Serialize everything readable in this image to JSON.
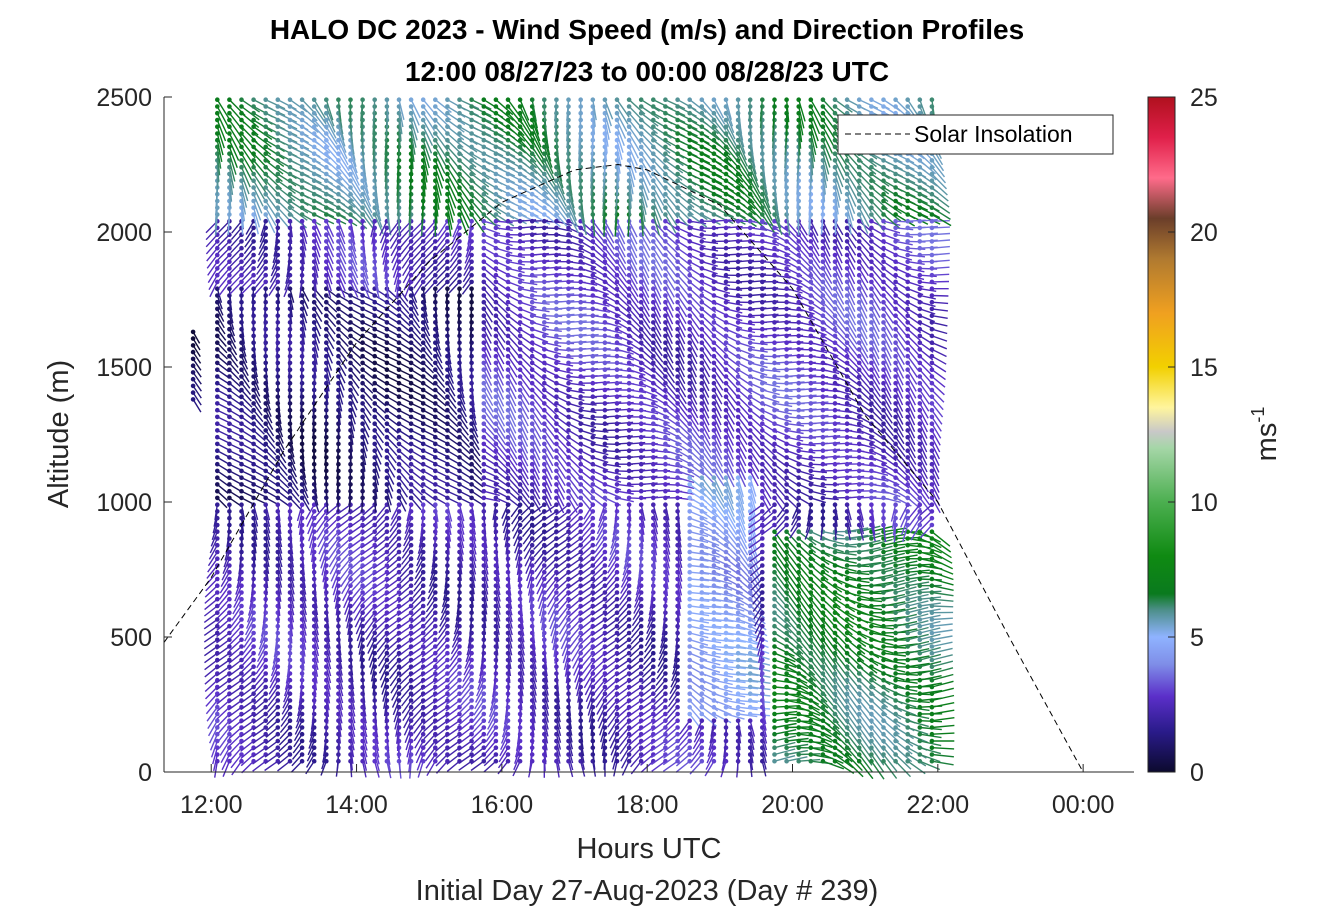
{
  "chart_data": {
    "type": "wind-barb-profile",
    "title_line1": "HALO DC 2023 - Wind Speed (m/s) and Direction Profiles",
    "title_line2": "12:00 08/27/23 to 00:00 08/28/23  UTC",
    "xlabel": "Hours UTC",
    "ylabel": "Altitude (m)",
    "subtitle": "Initial Day 27-Aug-2023 (Day # 239)",
    "x_tick_labels": [
      "12:00",
      "14:00",
      "16:00",
      "18:00",
      "20:00",
      "22:00",
      "00:00"
    ],
    "x_tick_hours": [
      12,
      14,
      16,
      18,
      20,
      22,
      24
    ],
    "xlim_hours": [
      11.35,
      24.7
    ],
    "y_ticks": [
      0,
      500,
      1000,
      1500,
      2000,
      2500
    ],
    "y_tick_labels": [
      "0",
      "500",
      "1000",
      "1500",
      "2000",
      "2500"
    ],
    "ylim": [
      0,
      2500
    ],
    "profile_start_hour": 11.75,
    "profile_end_hour": 22.0,
    "profile_step_hours": 0.1667,
    "colorbar": {
      "label_base": "ms",
      "label_exp": "-1",
      "ticks": [
        0,
        5,
        10,
        15,
        20,
        25
      ],
      "tick_labels": [
        "0",
        "5",
        "10",
        "15",
        "20",
        "25"
      ],
      "range": [
        0,
        25
      ],
      "stops": [
        {
          "v": 0,
          "c": "#0c0a2e"
        },
        {
          "v": 1.5,
          "c": "#2a1b8a"
        },
        {
          "v": 2.8,
          "c": "#5b2fc9"
        },
        {
          "v": 4.0,
          "c": "#7f8ee8"
        },
        {
          "v": 5.0,
          "c": "#8fb3ff"
        },
        {
          "v": 6.0,
          "c": "#4d8f8a"
        },
        {
          "v": 6.6,
          "c": "#0a7a1e"
        },
        {
          "v": 8.0,
          "c": "#0f8a12"
        },
        {
          "v": 10.0,
          "c": "#4caf50"
        },
        {
          "v": 12.0,
          "c": "#a5d6a7"
        },
        {
          "v": 12.6,
          "c": "#c8c8c8"
        },
        {
          "v": 13.5,
          "c": "#fff59d"
        },
        {
          "v": 15.0,
          "c": "#f2d000"
        },
        {
          "v": 17.0,
          "c": "#f0a020"
        },
        {
          "v": 19.0,
          "c": "#b07a30"
        },
        {
          "v": 20.5,
          "c": "#6b3e2a"
        },
        {
          "v": 22.0,
          "c": "#ff6b8a"
        },
        {
          "v": 23.5,
          "c": "#e0204a"
        },
        {
          "v": 25.0,
          "c": "#b0101e"
        }
      ]
    },
    "legend": {
      "label": "Solar Insolation",
      "placement": "top-right"
    },
    "solar_insolation_curve": {
      "hours": [
        11.35,
        12.0,
        13.0,
        14.0,
        15.0,
        16.0,
        17.0,
        17.6,
        18.0,
        19.0,
        20.0,
        21.0,
        22.0,
        23.0,
        24.0,
        24.7
      ],
      "altitude_m": [
        480,
        720,
        1190,
        1590,
        1890,
        2110,
        2230,
        2250,
        2230,
        2100,
        1790,
        1320,
        1000,
        490,
        0,
        0
      ]
    },
    "regimes": [
      {
        "t0": 11.75,
        "t1": 12.2,
        "z0": 1350,
        "z1": 1650,
        "speed": 0.6,
        "dir": 270
      },
      {
        "t0": 12.0,
        "t1": 15.6,
        "z0": 1000,
        "z1": 1800,
        "speed": 1.2,
        "dir": 300
      },
      {
        "t0": 12.0,
        "t1": 22.0,
        "z0": 0,
        "z1": 1000,
        "speed": 2.4,
        "dir": 250
      },
      {
        "t0": 15.6,
        "t1": 22.0,
        "z0": 1000,
        "z1": 2050,
        "speed": 2.8,
        "dir": 330
      },
      {
        "t0": 12.0,
        "t1": 22.0,
        "z0": 2050,
        "z1": 2500,
        "speed": 6.0,
        "dir": 300
      },
      {
        "t0": 19.6,
        "t1": 22.0,
        "z0": 0,
        "z1": 900,
        "speed": 6.5,
        "dir": 340
      },
      {
        "t0": 18.5,
        "t1": 19.5,
        "z0": 200,
        "z1": 1100,
        "speed": 4.6,
        "dir": 320
      }
    ]
  }
}
